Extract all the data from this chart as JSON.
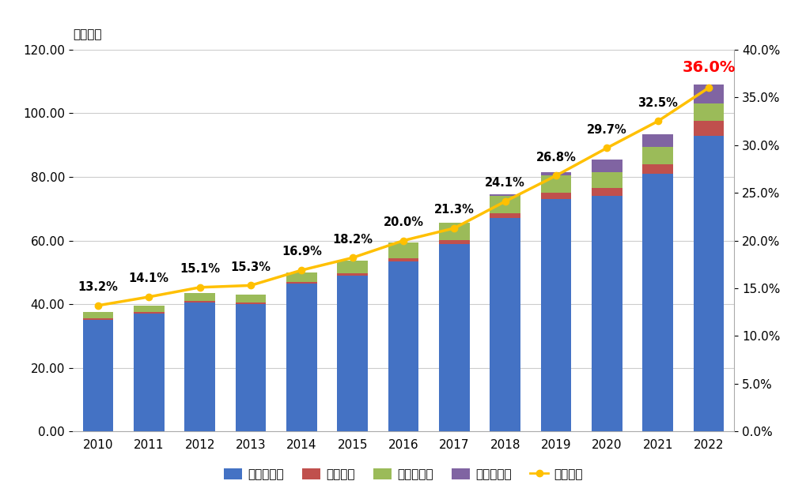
{
  "years": [
    2010,
    2011,
    2012,
    2013,
    2014,
    2015,
    2016,
    2017,
    2018,
    2019,
    2020,
    2021,
    2022
  ],
  "credit": [
    35.0,
    37.0,
    40.5,
    40.0,
    46.5,
    49.0,
    53.5,
    59.0,
    67.0,
    73.0,
    74.0,
    81.0,
    93.0
  ],
  "debit": [
    0.5,
    0.5,
    0.5,
    0.5,
    0.5,
    0.8,
    1.0,
    1.2,
    1.5,
    2.0,
    2.5,
    3.0,
    4.5
  ],
  "emoney": [
    2.0,
    2.0,
    2.5,
    2.5,
    3.0,
    4.0,
    5.0,
    5.5,
    5.5,
    5.5,
    5.0,
    5.5,
    5.5
  ],
  "code": [
    0.0,
    0.0,
    0.0,
    0.0,
    0.0,
    0.0,
    0.0,
    0.0,
    0.5,
    1.0,
    4.0,
    4.0,
    6.0
  ],
  "ratio": [
    13.2,
    14.1,
    15.1,
    15.3,
    16.9,
    18.2,
    20.0,
    21.3,
    24.1,
    26.8,
    29.7,
    32.5,
    36.0
  ],
  "credit_color": "#4472C4",
  "debit_color": "#C0504D",
  "emoney_color": "#9BBB59",
  "code_color": "#8064A2",
  "line_color": "#FFC000",
  "ratio_label_color_last": "#FF0000",
  "ratio_label_color_other": "#000000",
  "top_label": "（兆円）",
  "bar_width": 0.6,
  "ylim_left": [
    0,
    120
  ],
  "ylim_right": [
    0,
    40
  ],
  "yticks_left": [
    0,
    20,
    40,
    60,
    80,
    100,
    120
  ],
  "yticks_right": [
    0,
    5,
    10,
    15,
    20,
    25,
    30,
    35,
    40
  ],
  "legend_labels": [
    "クレジット",
    "デビット",
    "電子マネー",
    "コード決済",
    "決済比率"
  ],
  "bg_color": "#FFFFFF",
  "grid_color": "#CCCCCC"
}
